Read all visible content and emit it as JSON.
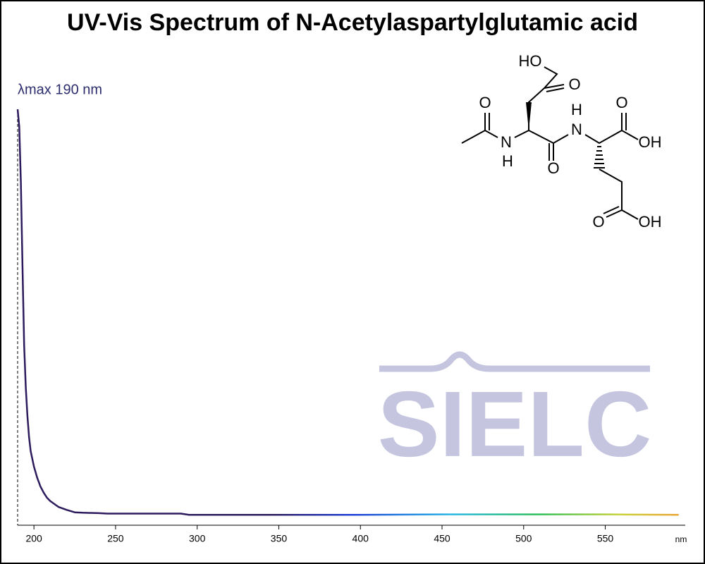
{
  "chart_data": {
    "type": "line",
    "title": "UV-Vis Spectrum of N-Acetylaspartylglutamic acid",
    "annotation": "λmax  190 nm",
    "x_label": "nm",
    "watermark": "SIELC",
    "x": [
      190,
      191,
      192,
      193,
      194,
      195,
      196,
      197,
      198,
      200,
      202,
      204,
      206,
      208,
      210,
      215,
      220,
      225,
      230,
      240,
      245,
      290,
      295,
      350,
      400,
      450,
      500,
      550,
      595
    ],
    "series": [
      {
        "name": "N-Acetylaspartylglutamic acid",
        "color": "#2d1b5e",
        "values": [
          1.0,
          0.958,
          0.822,
          0.619,
          0.432,
          0.331,
          0.263,
          0.212,
          0.178,
          0.141,
          0.114,
          0.093,
          0.078,
          0.066,
          0.058,
          0.044,
          0.037,
          0.031,
          0.03,
          0.029,
          0.028,
          0.028,
          0.025,
          0.025,
          0.025,
          0.026,
          0.026,
          0.026,
          0.025
        ]
      }
    ],
    "xlim": [
      190,
      599
    ],
    "ylim": [
      0,
      1
    ],
    "xticks": [
      200,
      250,
      300,
      350,
      400,
      450,
      500,
      550
    ],
    "lambda_max": 190
  },
  "structure": {
    "atoms": [
      "HO",
      "O",
      "O",
      "N",
      "H",
      "N",
      "H",
      "O",
      "O",
      "OH",
      "O",
      "OH"
    ]
  }
}
